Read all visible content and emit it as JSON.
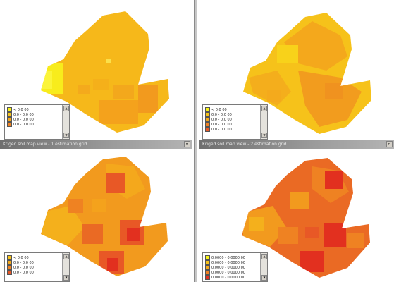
{
  "windows": {
    "left_title": "Kriged soil map view - 1 estimation grid",
    "right_title": "Kriged soil map view - 2 estimation grid"
  },
  "colors": {
    "pale_yellow": "#f8f21a",
    "yellow": "#f6c21a",
    "light_orange": "#f4a81c",
    "orange": "#ef8222",
    "red_orange": "#e85826",
    "red": "#e2301f"
  },
  "legends": {
    "top_left": [
      "< 0.0 00",
      "0.0 - 0.0 00",
      "0.0 - 0.0 00",
      "0.0 - 0.0 00"
    ],
    "top_right": [
      "< 0.0 00",
      "0.0 - 0.0 00",
      "0.0 - 0.0 00",
      "0.0 - 0.0 00",
      "0.0 - 0.0 00"
    ],
    "bottom_left": [
      "< 0.0 00",
      "0.0 - 0.0 00",
      "0.0 - 0.0 00",
      "0.0 - 0.0 00"
    ],
    "bottom_right": [
      "0.0000 - 0.0000 00",
      "0.0000 - 0.0000 00",
      "0.0000 - 0.0000 00",
      "0.0000 - 0.0000 00",
      "0.0000 - 0.0000 00"
    ]
  }
}
